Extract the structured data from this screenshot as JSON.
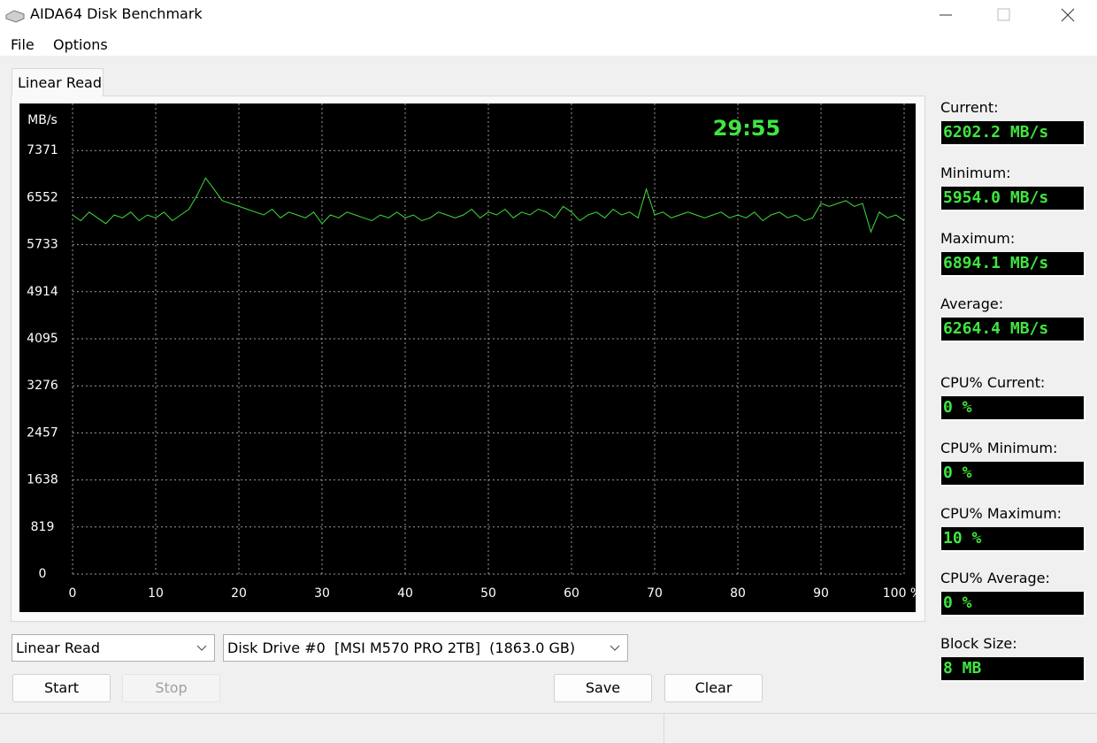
{
  "window": {
    "title": "AIDA64 Disk Benchmark"
  },
  "menu": [
    "File",
    "Options"
  ],
  "tab": "Linear Read",
  "chart_data": {
    "type": "line",
    "y_label": "MB/s",
    "annotation": "29:55",
    "x": [
      0,
      1,
      2,
      3,
      4,
      5,
      6,
      7,
      8,
      9,
      10,
      11,
      12,
      13,
      14,
      15,
      16,
      17,
      18,
      19,
      20,
      21,
      22,
      23,
      24,
      25,
      26,
      27,
      28,
      29,
      30,
      31,
      32,
      33,
      34,
      35,
      36,
      37,
      38,
      39,
      40,
      41,
      42,
      43,
      44,
      45,
      46,
      47,
      48,
      49,
      50,
      51,
      52,
      53,
      54,
      55,
      56,
      57,
      58,
      59,
      60,
      61,
      62,
      63,
      64,
      65,
      66,
      67,
      68,
      69,
      70,
      71,
      72,
      73,
      74,
      75,
      76,
      77,
      78,
      79,
      80,
      81,
      82,
      83,
      84,
      85,
      86,
      87,
      88,
      89,
      90,
      91,
      92,
      93,
      94,
      95,
      96,
      97,
      98,
      99,
      100
    ],
    "series": [
      {
        "color": "#3fdc3f",
        "values": [
          6250,
          6150,
          6300,
          6200,
          6100,
          6250,
          6200,
          6300,
          6150,
          6250,
          6200,
          6300,
          6150,
          6250,
          6350,
          6600,
          6894,
          6700,
          6500,
          6450,
          6400,
          6350,
          6300,
          6250,
          6350,
          6200,
          6300,
          6250,
          6200,
          6300,
          6100,
          6250,
          6200,
          6300,
          6250,
          6200,
          6150,
          6250,
          6200,
          6300,
          6200,
          6250,
          6150,
          6200,
          6300,
          6250,
          6200,
          6250,
          6350,
          6200,
          6300,
          6250,
          6350,
          6200,
          6300,
          6250,
          6350,
          6300,
          6200,
          6400,
          6300,
          6150,
          6250,
          6300,
          6200,
          6350,
          6250,
          6300,
          6200,
          6700,
          6250,
          6300,
          6200,
          6250,
          6300,
          6250,
          6200,
          6250,
          6300,
          6200,
          6250,
          6200,
          6300,
          6150,
          6250,
          6300,
          6200,
          6250,
          6150,
          6200,
          6450,
          6400,
          6450,
          6500,
          6400,
          6450,
          5954,
          6300,
          6200,
          6250,
          6150
        ]
      }
    ],
    "xlim": [
      0,
      100
    ],
    "ylim": [
      0,
      8190
    ],
    "xticks": [
      0,
      10,
      20,
      30,
      40,
      50,
      60,
      70,
      80,
      90,
      {
        "value": 100,
        "label": "100 %"
      }
    ],
    "yticks": [
      0,
      819,
      1638,
      2457,
      3276,
      4095,
      4914,
      5733,
      6552,
      7371
    ],
    "grid": true
  },
  "stats": [
    {
      "label": "Current:",
      "value": "6202.2 MB/s"
    },
    {
      "label": "Minimum:",
      "value": "5954.0 MB/s"
    },
    {
      "label": "Maximum:",
      "value": "6894.1 MB/s"
    },
    {
      "label": "Average:",
      "value": "6264.4 MB/s"
    },
    {
      "label": "CPU% Current:",
      "value": "0 %"
    },
    {
      "label": "CPU% Minimum:",
      "value": "0 %"
    },
    {
      "label": "CPU% Maximum:",
      "value": "10 %"
    },
    {
      "label": "CPU% Average:",
      "value": "0 %"
    },
    {
      "label": "Block Size:",
      "value": "8 MB"
    }
  ],
  "controls": {
    "test": "Linear Read",
    "drive": "Disk Drive #0  [MSI M570 PRO 2TB]  (1863.0 GB)",
    "buttons": [
      "Start",
      "Stop",
      "Save",
      "Clear"
    ]
  }
}
